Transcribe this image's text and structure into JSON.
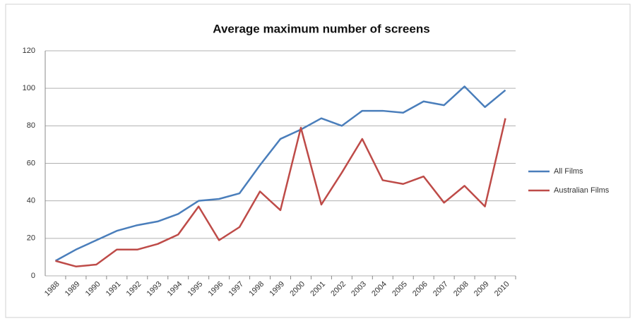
{
  "chart_data": {
    "type": "line",
    "title": "Average maximum number of screens",
    "categories": [
      "1988",
      "1989",
      "1990",
      "1991",
      "1992",
      "1993",
      "1994",
      "1995",
      "1996",
      "1997",
      "1998",
      "1999",
      "2000",
      "2001",
      "2002",
      "2003",
      "2004",
      "2005",
      "2006",
      "2007",
      "2008",
      "2009",
      "2010"
    ],
    "series": [
      {
        "name": "All Films",
        "color": "#4a7ebb",
        "values": [
          8,
          14,
          19,
          24,
          27,
          29,
          33,
          40,
          41,
          44,
          59,
          73,
          78,
          84,
          80,
          88,
          88,
          87,
          93,
          91,
          101,
          90,
          99
        ]
      },
      {
        "name": "Australian Films",
        "color": "#be4b48",
        "values": [
          8,
          5,
          6,
          14,
          14,
          17,
          22,
          37,
          19,
          26,
          45,
          35,
          79,
          38,
          55,
          73,
          51,
          49,
          53,
          39,
          48,
          37,
          84
        ]
      }
    ],
    "ylim": [
      0,
      120
    ],
    "yticks": [
      0,
      20,
      40,
      60,
      80,
      100,
      120
    ],
    "grid": true,
    "legend": "right"
  }
}
